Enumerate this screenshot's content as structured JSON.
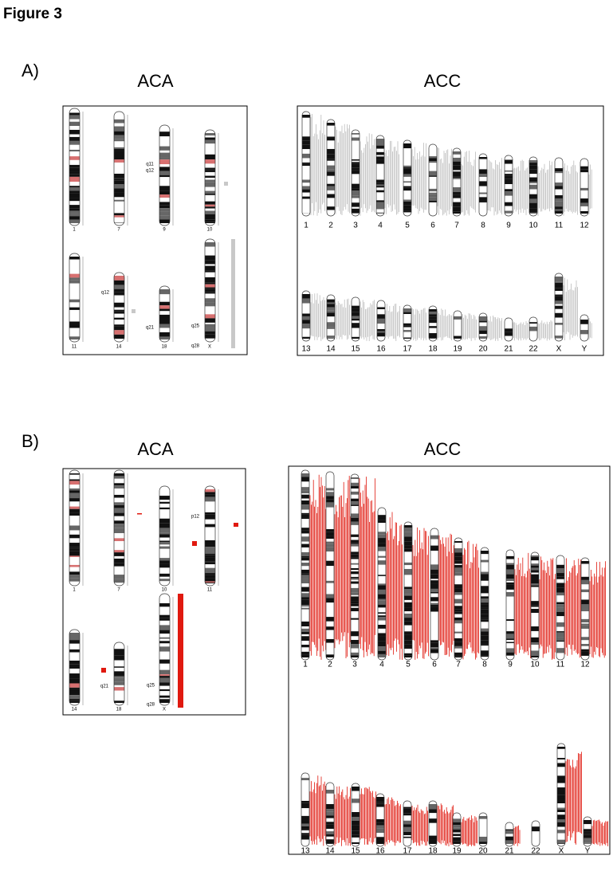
{
  "header": {
    "title": "Figure 3"
  },
  "panels": [
    {
      "label": "A)",
      "aca": {
        "title": "ACA",
        "chromosomes": [
          "1",
          "7",
          "9",
          "10",
          "11",
          "14",
          "18",
          "X"
        ],
        "band_labels": [
          "q11",
          "q12",
          "q12",
          "q21",
          "q25",
          "q28"
        ]
      },
      "acc": {
        "title": "ACC",
        "chromosomes": [
          "1",
          "2",
          "3",
          "4",
          "5",
          "6",
          "7",
          "8",
          "9",
          "10",
          "11",
          "12",
          "13",
          "14",
          "15",
          "16",
          "17",
          "18",
          "19",
          "20",
          "21",
          "22",
          "X",
          "Y"
        ]
      }
    },
    {
      "label": "B)",
      "aca": {
        "title": "ACA",
        "chromosomes": [
          "1",
          "7",
          "10",
          "11",
          "14",
          "18",
          "X"
        ],
        "band_labels": [
          "p12",
          "q21",
          "q25",
          "q28"
        ]
      },
      "acc": {
        "title": "ACC",
        "chromosomes": [
          "1",
          "2",
          "3",
          "4",
          "5",
          "6",
          "7",
          "8",
          "9",
          "10",
          "11",
          "12",
          "13",
          "14",
          "15",
          "16",
          "17",
          "18",
          "19",
          "20",
          "21",
          "22",
          "X",
          "Y"
        ]
      }
    }
  ]
}
